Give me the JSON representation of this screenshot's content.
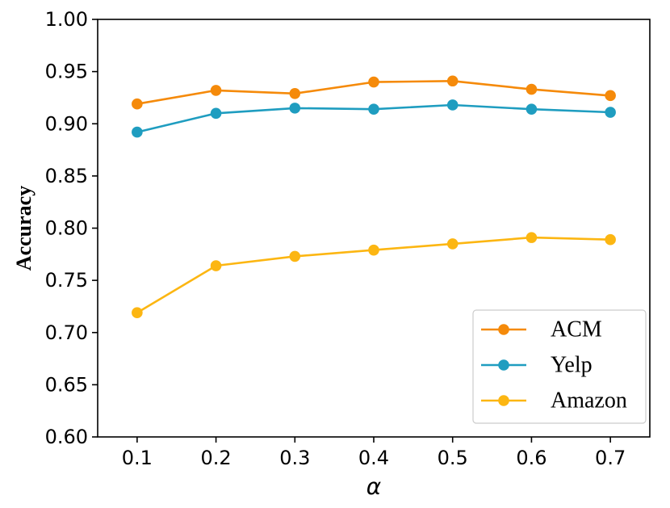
{
  "chart_data": {
    "type": "line",
    "title": "",
    "xlabel": "α",
    "ylabel": "Accuracy",
    "x": [
      0.1,
      0.2,
      0.3,
      0.4,
      0.5,
      0.6,
      0.7
    ],
    "x_tick_labels": [
      "0.1",
      "0.2",
      "0.3",
      "0.4",
      "0.5",
      "0.6",
      "0.7"
    ],
    "y_ticks": [
      0.6,
      0.65,
      0.7,
      0.75,
      0.8,
      0.85,
      0.9,
      0.95,
      1.0
    ],
    "y_tick_labels": [
      "0.60",
      "0.65",
      "0.70",
      "0.75",
      "0.80",
      "0.85",
      "0.90",
      "0.95",
      "1.00"
    ],
    "xlim": [
      0.05,
      0.75
    ],
    "ylim": [
      0.6,
      1.0
    ],
    "grid": false,
    "legend_position": "lower-right",
    "series": [
      {
        "name": "ACM",
        "color": "#F58A0A",
        "values": [
          0.919,
          0.932,
          0.929,
          0.94,
          0.941,
          0.933,
          0.927
        ]
      },
      {
        "name": "Yelp",
        "color": "#1F9DC0",
        "values": [
          0.892,
          0.91,
          0.915,
          0.914,
          0.918,
          0.914,
          0.911
        ]
      },
      {
        "name": "Amazon",
        "color": "#FCB612",
        "values": [
          0.719,
          0.764,
          0.773,
          0.779,
          0.785,
          0.791,
          0.789
        ]
      }
    ]
  }
}
